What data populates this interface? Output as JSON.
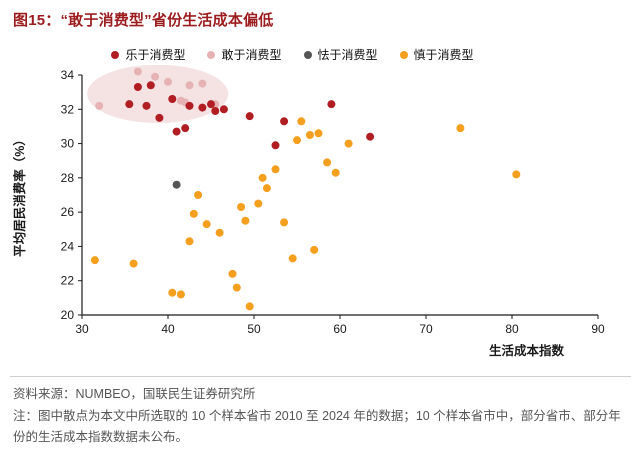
{
  "header": {
    "title": "图15：“敢于消费型”省份生活成本偏低"
  },
  "chart_data": {
    "type": "scatter",
    "title": "“敢于消费型”省份生活成本偏低",
    "xlabel": "生活成本指数",
    "ylabel": "平均居民消费率（%）",
    "xlim": [
      30,
      90
    ],
    "ylim": [
      20,
      34
    ],
    "xticks": [
      30,
      40,
      50,
      60,
      70,
      80,
      90
    ],
    "yticks": [
      20,
      22,
      24,
      26,
      28,
      30,
      32,
      34
    ],
    "grid": false,
    "legend_position": "top",
    "highlight_ellipse": {
      "cx": 38.8,
      "cy": 32.9,
      "rx": 8.2,
      "ry": 1.7,
      "color": "#f0d2d2",
      "opacity": 0.65
    },
    "series": [
      {
        "name": "乐于消费型",
        "color": "#b01e23",
        "points": [
          [
            36.5,
            33.3
          ],
          [
            38,
            33.4
          ],
          [
            35.5,
            32.3
          ],
          [
            37.5,
            32.2
          ],
          [
            39,
            31.5
          ],
          [
            40.5,
            32.6
          ],
          [
            41,
            30.7
          ],
          [
            42,
            30.9
          ],
          [
            42.5,
            32.2
          ],
          [
            44,
            32.1
          ],
          [
            45,
            32.3
          ],
          [
            45.5,
            31.9
          ],
          [
            46.5,
            32.0
          ],
          [
            49.5,
            31.6
          ],
          [
            52.5,
            29.9
          ],
          [
            53.5,
            31.3
          ],
          [
            59,
            32.3
          ],
          [
            63.5,
            30.4
          ]
        ]
      },
      {
        "name": "敢于消费型",
        "color": "#e6b3b4",
        "points": [
          [
            32,
            32.2
          ],
          [
            36.5,
            34.2
          ],
          [
            38.5,
            33.9
          ],
          [
            40,
            33.6
          ],
          [
            40.5,
            32.6
          ],
          [
            41.5,
            32.5
          ],
          [
            42,
            32.4
          ],
          [
            42.5,
            33.4
          ],
          [
            44,
            33.5
          ],
          [
            45.5,
            32.3
          ]
        ]
      },
      {
        "name": "怯于消费型",
        "color": "#555555",
        "points": [
          [
            41,
            27.6
          ]
        ]
      },
      {
        "name": "慎于消费型",
        "color": "#f59f1e",
        "points": [
          [
            31.5,
            23.2
          ],
          [
            36,
            23.0
          ],
          [
            40.5,
            21.3
          ],
          [
            41.5,
            21.2
          ],
          [
            42.5,
            24.3
          ],
          [
            43,
            25.9
          ],
          [
            43.5,
            27.0
          ],
          [
            44.5,
            25.3
          ],
          [
            46,
            24.8
          ],
          [
            47.5,
            22.4
          ],
          [
            48,
            21.6
          ],
          [
            48.5,
            26.3
          ],
          [
            49,
            25.5
          ],
          [
            49.5,
            20.5
          ],
          [
            50.5,
            26.5
          ],
          [
            51,
            28.0
          ],
          [
            51.5,
            27.4
          ],
          [
            52.5,
            28.5
          ],
          [
            53.5,
            25.4
          ],
          [
            54.5,
            23.3
          ],
          [
            55,
            30.2
          ],
          [
            55.5,
            31.3
          ],
          [
            56.5,
            30.5
          ],
          [
            57,
            23.8
          ],
          [
            57.5,
            30.6
          ],
          [
            58.5,
            28.9
          ],
          [
            59.5,
            28.3
          ],
          [
            61,
            30.0
          ],
          [
            74,
            30.9
          ],
          [
            80.5,
            28.2
          ]
        ]
      }
    ]
  },
  "footer": {
    "source": "资料来源：NUMBEO，国联民生证券研究所",
    "note": "注：图中散点为本文中所选取的 10 个样本省市 2010 至 2024 年的数据；10 个样本省市中，部分省市、部分年份的生活成本指数数据未公布。"
  }
}
